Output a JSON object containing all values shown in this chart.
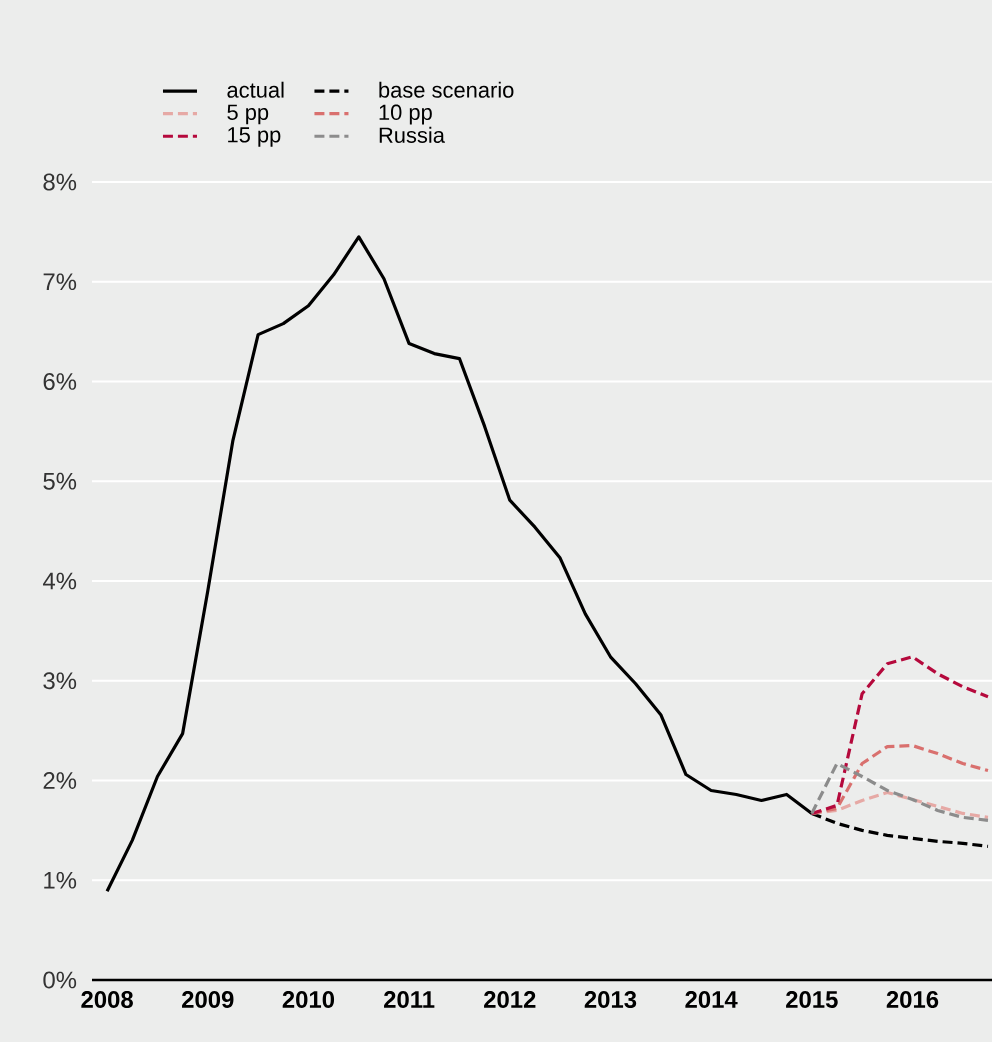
{
  "chart_data": {
    "type": "line",
    "xlim": [
      2007.85,
      2016.79
    ],
    "ylim": [
      0,
      8
    ],
    "xticks": [
      2008,
      2009,
      2010,
      2011,
      2012,
      2013,
      2014,
      2015,
      2016
    ],
    "yticks": [
      {
        "value": 0,
        "label": "0%"
      },
      {
        "value": 1,
        "label": "1%"
      },
      {
        "value": 2,
        "label": "2%"
      },
      {
        "value": 3,
        "label": "3%"
      },
      {
        "value": 4,
        "label": "4%"
      },
      {
        "value": 5,
        "label": "5%"
      },
      {
        "value": 6,
        "label": "6%"
      },
      {
        "value": 7,
        "label": "7%"
      },
      {
        "value": 8,
        "label": "8%"
      }
    ],
    "grid": "y",
    "legend": "top",
    "marker": "none",
    "series": [
      {
        "name": "actual",
        "color": "#000000",
        "line_style": "solid",
        "x": [
          2008,
          2008.25,
          2008.5,
          2008.75,
          2009,
          2009.25,
          2009.5,
          2009.75,
          2010,
          2010.25,
          2010.5,
          2010.75,
          2011,
          2011.25,
          2011.5,
          2011.75,
          2012,
          2012.25,
          2012.5,
          2012.75,
          2013,
          2013.25,
          2013.5,
          2013.75,
          2014,
          2014.25,
          2014.5,
          2014.75,
          2015
        ],
        "values": [
          0.89,
          1.4,
          2.04,
          2.47,
          3.9,
          5.41,
          6.47,
          6.58,
          6.76,
          7.07,
          7.45,
          7.03,
          6.38,
          6.28,
          6.23,
          5.55,
          4.81,
          4.54,
          4.23,
          3.67,
          3.24,
          2.97,
          2.66,
          2.06,
          1.9,
          1.86,
          1.8,
          1.86,
          1.67
        ]
      },
      {
        "name": "base scenario",
        "color": "#000000",
        "line_style": "dashed",
        "x": [
          2015,
          2015.25,
          2015.5,
          2015.75,
          2016,
          2016.25,
          2016.5,
          2016.75
        ],
        "values": [
          1.67,
          1.57,
          1.5,
          1.45,
          1.42,
          1.39,
          1.37,
          1.34
        ]
      },
      {
        "name": "5 pp",
        "color": "#e6a9a5",
        "line_style": "dashed",
        "x": [
          2015,
          2015.25,
          2015.5,
          2015.75,
          2016,
          2016.25,
          2016.5,
          2016.75
        ],
        "values": [
          1.67,
          1.7,
          1.8,
          1.88,
          1.81,
          1.74,
          1.67,
          1.63
        ]
      },
      {
        "name": "10 pp",
        "color": "#d9706e",
        "line_style": "dashed",
        "x": [
          2015,
          2015.25,
          2015.5,
          2015.75,
          2016,
          2016.25,
          2016.5,
          2016.75
        ],
        "values": [
          1.67,
          1.72,
          2.17,
          2.34,
          2.35,
          2.27,
          2.17,
          2.1
        ]
      },
      {
        "name": "15 pp",
        "color": "#b5093c",
        "line_style": "dashed",
        "x": [
          2015,
          2015.25,
          2015.5,
          2015.75,
          2016,
          2016.25,
          2016.5,
          2016.75
        ],
        "values": [
          1.67,
          1.75,
          2.87,
          3.17,
          3.24,
          3.07,
          2.94,
          2.84
        ]
      },
      {
        "name": "Russia",
        "color": "#8c8c8c",
        "line_style": "dashed",
        "x": [
          2015,
          2015.25,
          2015.5,
          2015.75,
          2016,
          2016.25,
          2016.5,
          2016.75
        ],
        "values": [
          1.67,
          2.17,
          2.04,
          1.9,
          1.81,
          1.7,
          1.63,
          1.6
        ]
      }
    ]
  }
}
